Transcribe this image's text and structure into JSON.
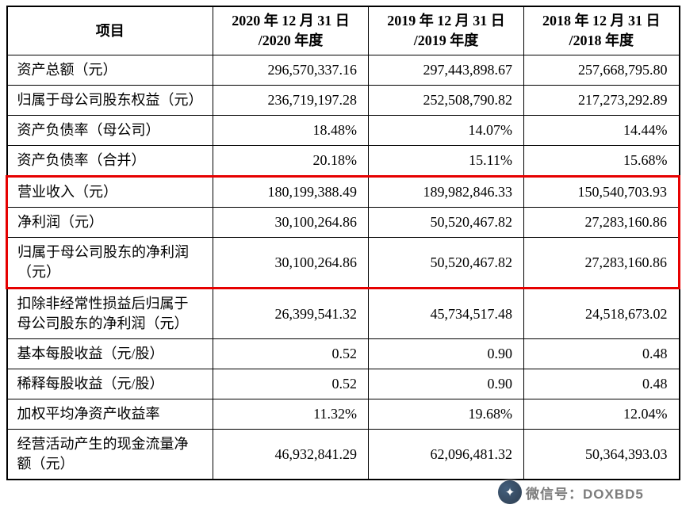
{
  "table": {
    "header": {
      "item": "项目",
      "cols": [
        {
          "line1": "2020 年 12 月 31 日",
          "line2": "/2020 年度"
        },
        {
          "line1": "2019 年 12 月 31 日",
          "line2": "/2019 年度"
        },
        {
          "line1": "2018 年 12 月 31 日",
          "line2": "/2018 年度"
        }
      ]
    },
    "rows": [
      {
        "label": "资产总额（元）",
        "values": [
          "296,570,337.16",
          "297,443,898.67",
          "257,668,795.80"
        ]
      },
      {
        "label": "归属于母公司股东权益（元）",
        "values": [
          "236,719,197.28",
          "252,508,790.82",
          "217,273,292.89"
        ]
      },
      {
        "label": "资产负债率（母公司）",
        "values": [
          "18.48%",
          "14.07%",
          "14.44%"
        ]
      },
      {
        "label": "资产负债率（合并）",
        "values": [
          "20.18%",
          "15.11%",
          "15.68%"
        ]
      },
      {
        "label": "营业收入（元）",
        "values": [
          "180,199,388.49",
          "189,982,846.33",
          "150,540,703.93"
        ],
        "highlighted": true
      },
      {
        "label": "净利润（元）",
        "values": [
          "30,100,264.86",
          "50,520,467.82",
          "27,283,160.86"
        ],
        "highlighted": true
      },
      {
        "label": "归属于母公司股东的净利润（元）",
        "values": [
          "30,100,264.86",
          "50,520,467.82",
          "27,283,160.86"
        ],
        "highlighted": true
      },
      {
        "label": "扣除非经常性损益后归属于母公司股东的净利润（元）",
        "values": [
          "26,399,541.32",
          "45,734,517.48",
          "24,518,673.02"
        ]
      },
      {
        "label": "基本每股收益（元/股）",
        "values": [
          "0.52",
          "0.90",
          "0.48"
        ]
      },
      {
        "label": "稀释每股收益（元/股）",
        "values": [
          "0.52",
          "0.90",
          "0.48"
        ]
      },
      {
        "label": "加权平均净资产收益率",
        "values": [
          "11.32%",
          "19.68%",
          "12.04%"
        ]
      },
      {
        "label": "经营活动产生的现金流量净额（元）",
        "values": [
          "46,932,841.29",
          "62,096,481.32",
          "50,364,393.03"
        ]
      }
    ]
  },
  "watermark": {
    "label": "微信号：DOXBD5",
    "icon": "✦"
  },
  "colors": {
    "highlight_border": "#e60000",
    "table_border": "#000000"
  }
}
